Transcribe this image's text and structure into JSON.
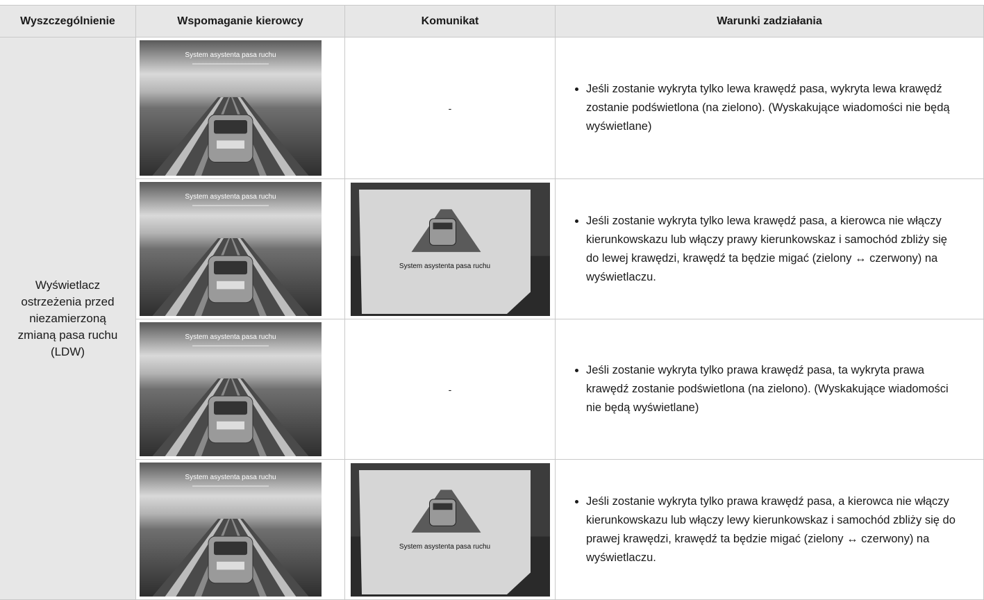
{
  "table": {
    "header": [
      "Wyszczególnienie",
      "Wspomaganie kierowcy",
      "Komunikat",
      "Warunki zadziałania"
    ],
    "item": "Wyświetlacz ostrzeżenia przed niezamierzoną zmianą pasa ruchu (LDW)",
    "rows": [
      {
        "assist_caption": "System asystenta pasa ruchu",
        "message": "-",
        "condition": "Jeśli zostanie wykryta tylko lewa krawędź pasa, wykryta lewa krawędź zostanie podświetlona (na zielono). (Wyskakujące wiadomości nie będą wyświetlane)"
      },
      {
        "assist_caption": "System asystenta pasa ruchu",
        "message_caption": "System asystenta pasa ruchu",
        "condition": "Jeśli zostanie wykryta tylko lewa krawędź pasa, a kierowca nie włączy kierunkowskazu lub włączy prawy kierunkowskaz i samochód zbliży się do lewej krawędzi, krawędź ta będzie migać (zielony ↔ czerwony) na wyświetlaczu."
      },
      {
        "assist_caption": "System asystenta pasa ruchu",
        "message": "-",
        "condition": "Jeśli zostanie wykryta tylko prawa krawędź pasa, ta wykryta prawa krawędź zostanie podświetlona (na zielono). (Wyskakujące wiadomości nie będą wyświetlane)"
      },
      {
        "assist_caption": "System asystenta pasa ruchu",
        "message_caption": "System asystenta pasa ruchu",
        "condition": "Jeśli zostanie wykryta tylko prawa krawędź pasa, a kierowca nie włączy kierunkowskazu lub włączy lewy kierunkowskaz i samochód zbliży się do prawej krawędzi, krawędź ta będzie migać (zielony ↔ czerwony) na wyświetlaczu."
      }
    ]
  }
}
